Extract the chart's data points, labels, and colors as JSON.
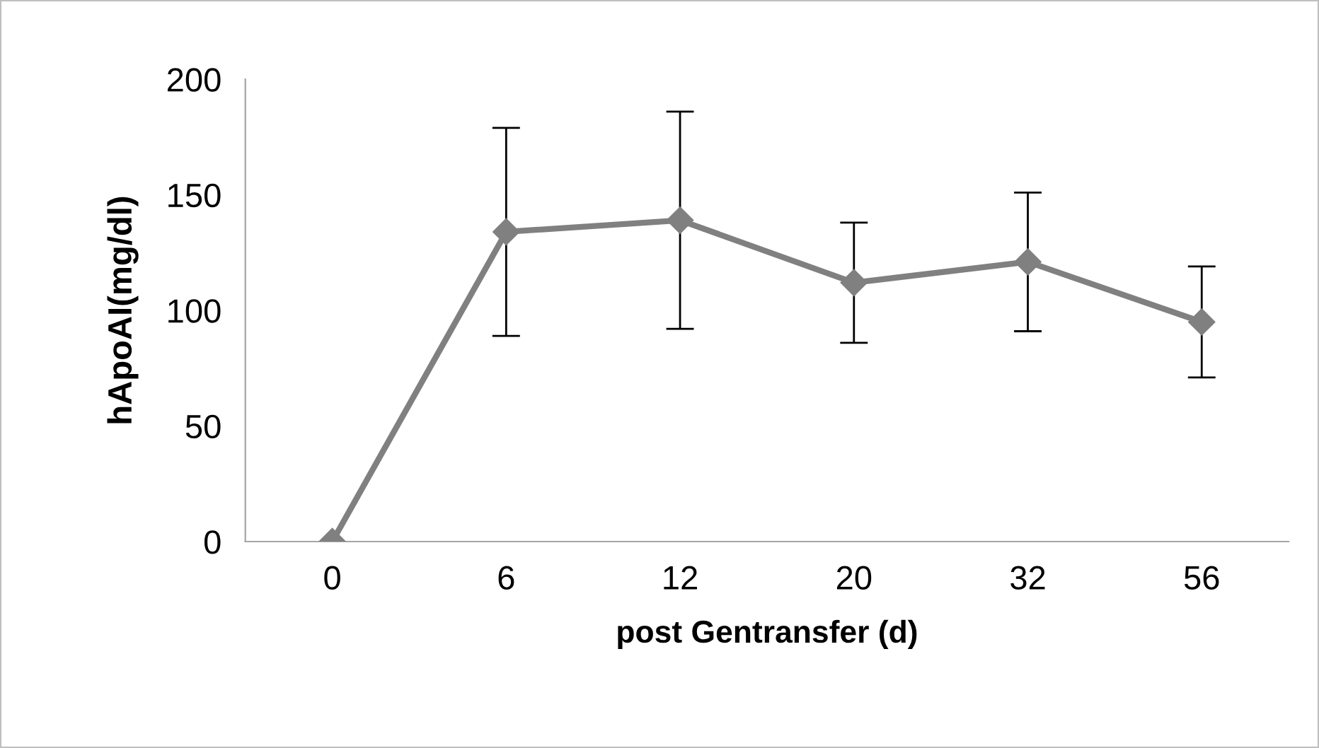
{
  "chart_data": {
    "type": "line",
    "xlabel": "post Gentransfer (d)",
    "ylabel": "hApoAI(mg/dl)",
    "categories": [
      "0",
      "6",
      "12",
      "20",
      "32",
      "56"
    ],
    "series": [
      {
        "color": "#808080",
        "values": [
          0,
          134,
          139,
          112,
          121,
          95
        ],
        "errors": [
          null,
          45,
          47,
          26,
          30,
          24
        ]
      }
    ],
    "ylim": [
      0,
      200
    ],
    "yticks": [
      0,
      50,
      100,
      150,
      200
    ],
    "grid": false,
    "legend": false,
    "marker": "diamond",
    "line_style": "solid"
  }
}
